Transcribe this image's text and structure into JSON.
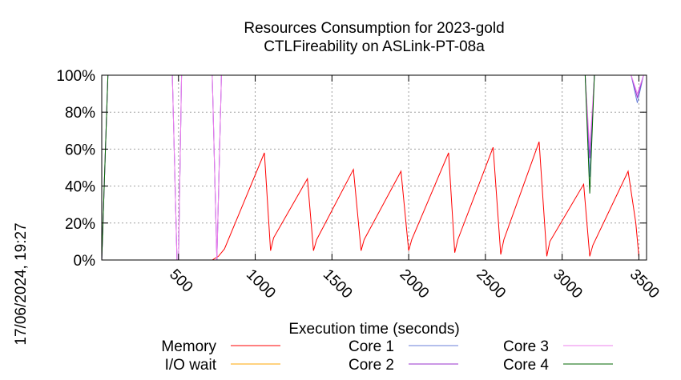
{
  "chart_data": {
    "type": "line",
    "title": "Resources Consumption for 2023-gold",
    "subtitle": "CTLFireability on ASLink-PT-08a",
    "xlabel": "Execution time (seconds)",
    "ylabel": "",
    "side_label": "17/06/2024, 19:27",
    "xlim": [
      0,
      3550
    ],
    "ylim": [
      0,
      100
    ],
    "xticks": [
      500,
      1000,
      1500,
      2000,
      2500,
      3000,
      3500
    ],
    "yticks": [
      0,
      20,
      40,
      60,
      80,
      100
    ],
    "ytick_suffix": "%",
    "grid": true,
    "legend_position": "bottom",
    "series": [
      {
        "name": "Memory",
        "color": "#ff0000",
        "x": [
          0,
          720,
          760,
          800,
          1060,
          1100,
          1120,
          1340,
          1380,
          1400,
          1640,
          1690,
          1710,
          1950,
          2000,
          2020,
          2260,
          2300,
          2320,
          2550,
          2600,
          2620,
          2850,
          2900,
          2920,
          3140,
          3180,
          3200,
          3430,
          3480,
          3500
        ],
        "y": [
          0,
          0,
          2,
          6,
          58,
          5,
          12,
          44,
          5,
          11,
          49,
          5,
          11,
          48,
          5,
          11,
          58,
          4,
          11,
          61,
          3,
          11,
          64,
          2,
          10,
          41,
          2,
          8,
          48,
          20,
          2
        ]
      },
      {
        "name": "I/O wait",
        "color": "#ffa500",
        "x": [
          0,
          3500
        ],
        "y": [
          0,
          0
        ]
      },
      {
        "name": "Core 1",
        "color": "#6a7fd8",
        "x": [
          0,
          40,
          460,
          490,
          500,
          520,
          720,
          750,
          780,
          3150,
          3180,
          3210,
          3450,
          3490,
          3530
        ],
        "y": [
          0,
          100,
          100,
          0,
          0,
          100,
          100,
          0,
          100,
          100,
          45,
          100,
          100,
          85,
          100
        ]
      },
      {
        "name": "Core 2",
        "color": "#9932cc",
        "x": [
          0,
          40,
          460,
          490,
          500,
          520,
          720,
          750,
          780,
          3150,
          3180,
          3210,
          3450,
          3490,
          3530
        ],
        "y": [
          0,
          100,
          100,
          0,
          0,
          100,
          100,
          0,
          100,
          100,
          55,
          100,
          100,
          88,
          100
        ]
      },
      {
        "name": "Core 3",
        "color": "#ee82ee",
        "x": [
          0,
          40,
          460,
          490,
          500,
          520,
          720,
          750,
          780,
          3150,
          3180,
          3210,
          3450,
          3490,
          3530
        ],
        "y": [
          0,
          100,
          100,
          0,
          0,
          100,
          100,
          0,
          100,
          100,
          60,
          100,
          100,
          90,
          100
        ]
      },
      {
        "name": "Core 4",
        "color": "#006400",
        "x": [
          0,
          40,
          3150,
          3180,
          3210,
          3550
        ],
        "y": [
          0,
          100,
          100,
          36,
          100,
          100
        ]
      }
    ]
  }
}
